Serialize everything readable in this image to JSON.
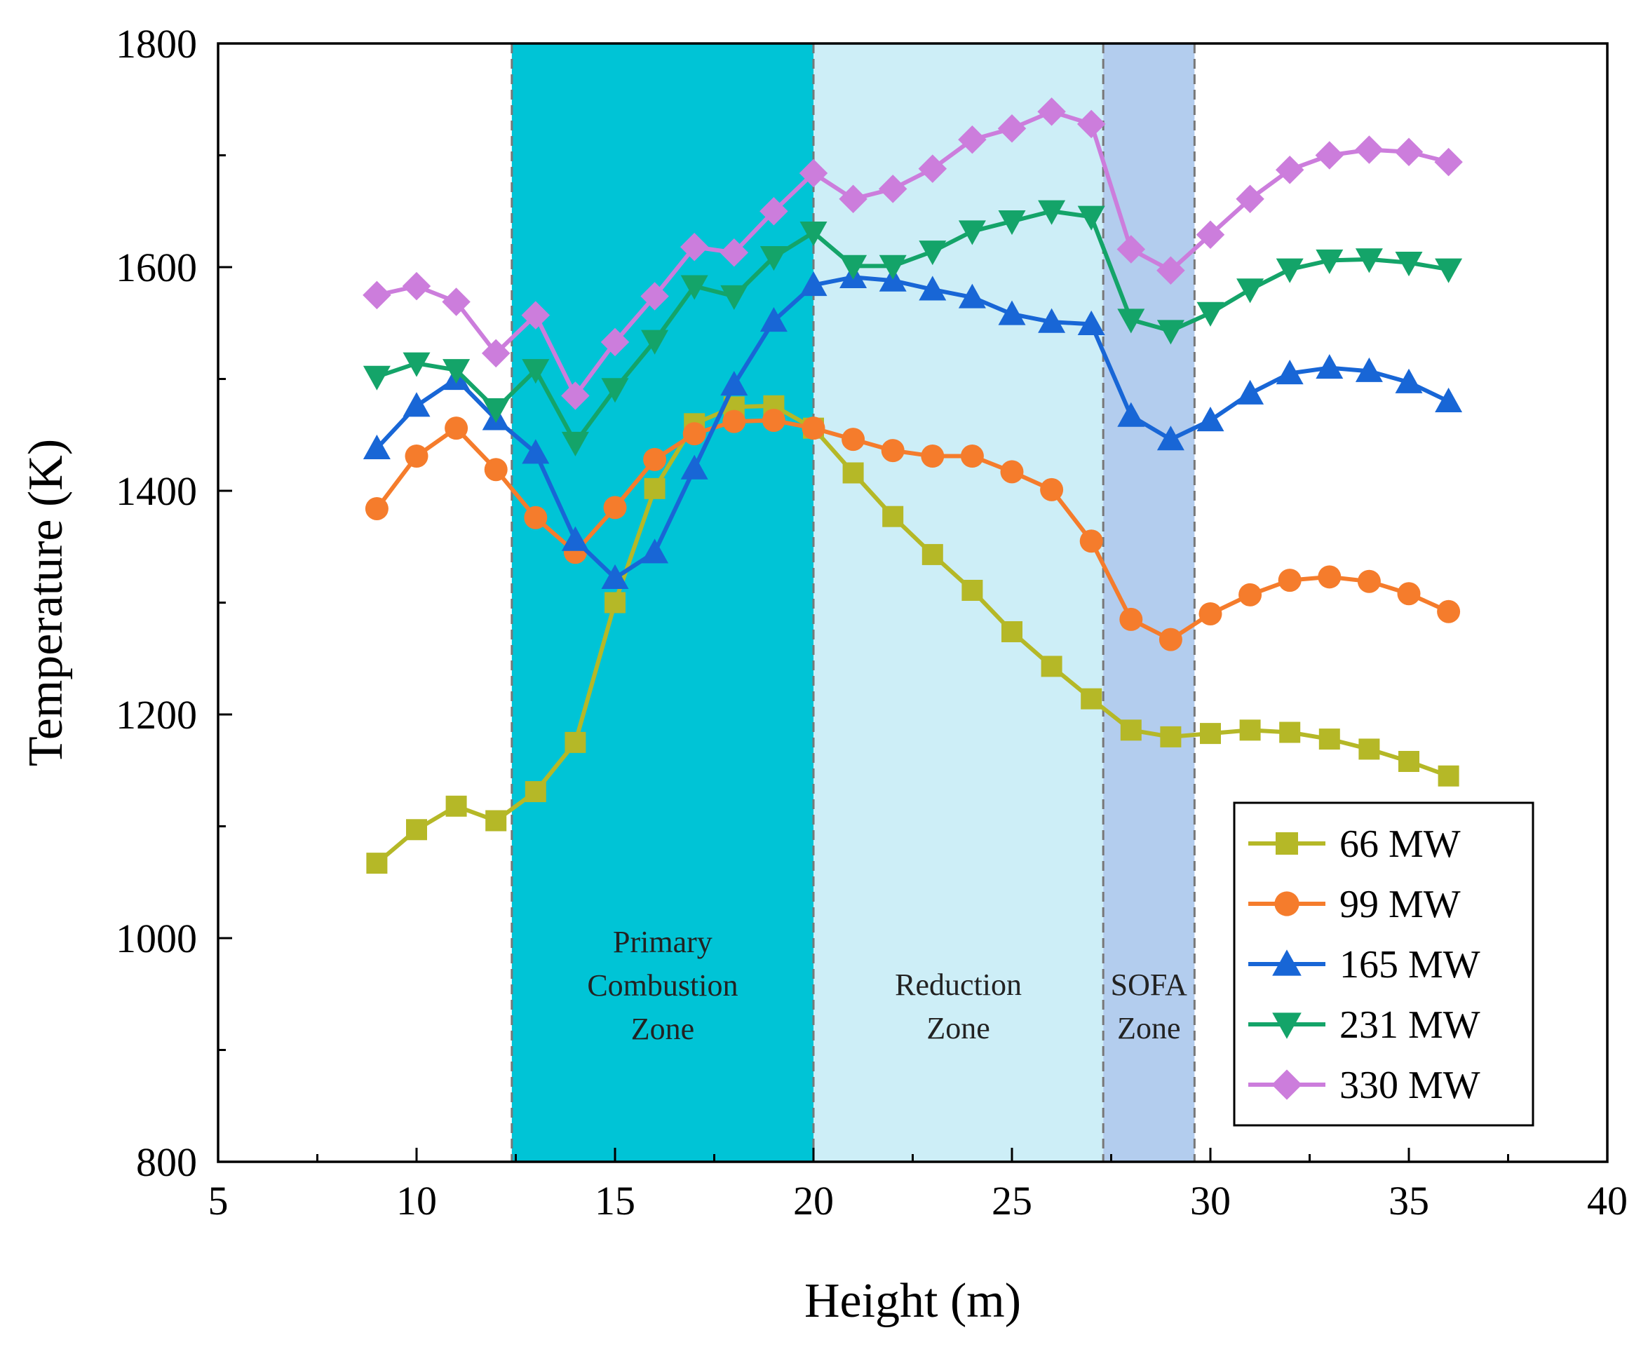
{
  "chart_data": {
    "type": "line",
    "title": "",
    "xlabel": "Height (m)",
    "ylabel": "Temperature (K)",
    "xlim": [
      5,
      40
    ],
    "ylim": [
      800,
      1800
    ],
    "xticks": [
      5,
      10,
      15,
      20,
      25,
      30,
      35,
      40
    ],
    "yticks": [
      800,
      1000,
      1200,
      1400,
      1600,
      1800
    ],
    "x": [
      9,
      10,
      11,
      12,
      13,
      14,
      15,
      16,
      17,
      18,
      19,
      20,
      21,
      22,
      23,
      24,
      25,
      26,
      27,
      28,
      29,
      30,
      31,
      32,
      33,
      34,
      35,
      36
    ],
    "zones": [
      {
        "label": [
          "Primary",
          "Combustion",
          "Zone"
        ],
        "x_start": 12.4,
        "x_end": 20,
        "color": "#00c4d6"
      },
      {
        "label": [
          "Reduction",
          "Zone"
        ],
        "x_start": 20,
        "x_end": 27.3,
        "color": "#cdeef7"
      },
      {
        "label": [
          "SOFA",
          "Zone"
        ],
        "x_start": 27.3,
        "x_end": 29.6,
        "color": "#b3cdee"
      }
    ],
    "legend_position": "bottom-right",
    "series": [
      {
        "name": "66 MW",
        "color": "#b5b827",
        "marker": "square",
        "values": [
          1067,
          1097,
          1118,
          1105,
          1131,
          1175,
          1300,
          1402,
          1460,
          1475,
          1476,
          1456,
          1416,
          1377,
          1343,
          1311,
          1274,
          1243,
          1214,
          1186,
          1180,
          1183,
          1186,
          1184,
          1178,
          1169,
          1158,
          1145
        ]
      },
      {
        "name": "99 MW",
        "color": "#f57c2c",
        "marker": "circle",
        "values": [
          1384,
          1431,
          1456,
          1419,
          1376,
          1345,
          1385,
          1428,
          1451,
          1462,
          1463,
          1456,
          1446,
          1436,
          1431,
          1431,
          1417,
          1401,
          1355,
          1285,
          1267,
          1290,
          1307,
          1320,
          1323,
          1319,
          1308,
          1292
        ]
      },
      {
        "name": "165 MW",
        "color": "#1866d6",
        "marker": "triangle-up",
        "values": [
          1438,
          1476,
          1500,
          1464,
          1434,
          1356,
          1322,
          1345,
          1420,
          1495,
          1552,
          1584,
          1591,
          1588,
          1580,
          1573,
          1558,
          1551,
          1549,
          1467,
          1446,
          1463,
          1487,
          1505,
          1510,
          1507,
          1497,
          1480
        ]
      },
      {
        "name": "231 MW",
        "color": "#14a469",
        "marker": "triangle-down",
        "values": [
          1502,
          1514,
          1508,
          1473,
          1508,
          1443,
          1491,
          1534,
          1583,
          1574,
          1609,
          1631,
          1601,
          1601,
          1614,
          1632,
          1641,
          1650,
          1645,
          1553,
          1543,
          1559,
          1580,
          1598,
          1606,
          1607,
          1604,
          1598
        ]
      },
      {
        "name": "330 MW",
        "color": "#cc7ddc",
        "marker": "diamond",
        "values": [
          1575,
          1583,
          1569,
          1523,
          1557,
          1485,
          1533,
          1574,
          1618,
          1613,
          1650,
          1684,
          1661,
          1670,
          1688,
          1714,
          1724,
          1739,
          1728,
          1616,
          1597,
          1629,
          1661,
          1687,
          1700,
          1705,
          1703,
          1694
        ]
      }
    ]
  }
}
